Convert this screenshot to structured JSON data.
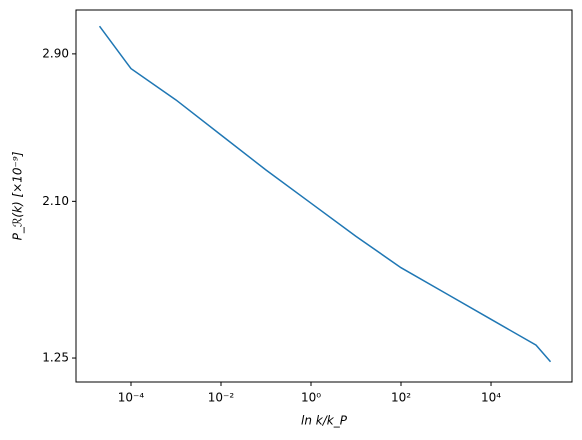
{
  "chart_data": {
    "type": "line",
    "xlabel": "ln k/k_P",
    "ylabel": "P_ℛ(k) [×10⁻⁹]",
    "x": [
      2e-05,
      0.0001,
      0.001,
      0.01,
      0.1,
      1,
      10,
      100,
      1000,
      10000,
      100000,
      210000
    ],
    "values": [
      3.05,
      2.82,
      2.65,
      2.46,
      2.27,
      2.09,
      1.91,
      1.74,
      1.6,
      1.46,
      1.32,
      1.23
    ],
    "color": "#1f77b4",
    "xscale": "log",
    "xlim": [
      6e-06,
      630000
    ],
    "xticks": [
      {
        "value": 0.0001,
        "label": "10⁻⁴"
      },
      {
        "value": 0.01,
        "label": "10⁻²"
      },
      {
        "value": 1,
        "label": "10⁰"
      },
      {
        "value": 100,
        "label": "10²"
      },
      {
        "value": 10000,
        "label": "10⁴"
      }
    ],
    "ylim": [
      1.12,
      3.138
    ],
    "yticks": [
      {
        "value": 2.9,
        "label": "2.90"
      },
      {
        "value": 2.1,
        "label": "2.10"
      },
      1.25
    ],
    "grid": false
  }
}
